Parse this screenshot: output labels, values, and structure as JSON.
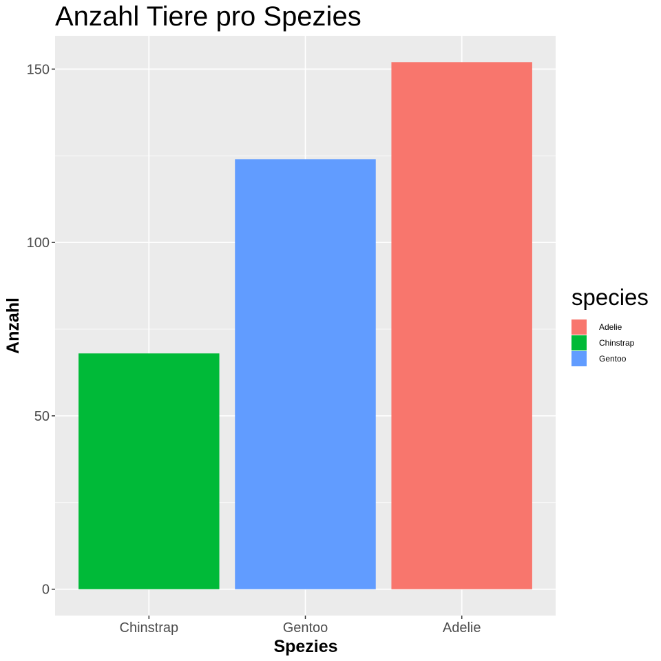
{
  "chart_data": {
    "type": "bar",
    "title": "Anzahl Tiere pro Spezies",
    "xlabel": "Spezies",
    "ylabel": "Anzahl",
    "categories": [
      "Chinstrap",
      "Gentoo",
      "Adelie"
    ],
    "values": [
      68,
      124,
      152
    ],
    "colors": [
      "#00BA38",
      "#619CFF",
      "#F8766D"
    ],
    "ylim": [
      -7.6,
      159.6
    ],
    "yticks": [
      0,
      50,
      100,
      150
    ],
    "grid": true,
    "panel_background": "#EBEBEB",
    "legend": {
      "title": "species",
      "position": "right",
      "items": [
        {
          "label": "Adelie",
          "color": "#F8766D"
        },
        {
          "label": "Chinstrap",
          "color": "#00BA38"
        },
        {
          "label": "Gentoo",
          "color": "#619CFF"
        }
      ]
    }
  }
}
